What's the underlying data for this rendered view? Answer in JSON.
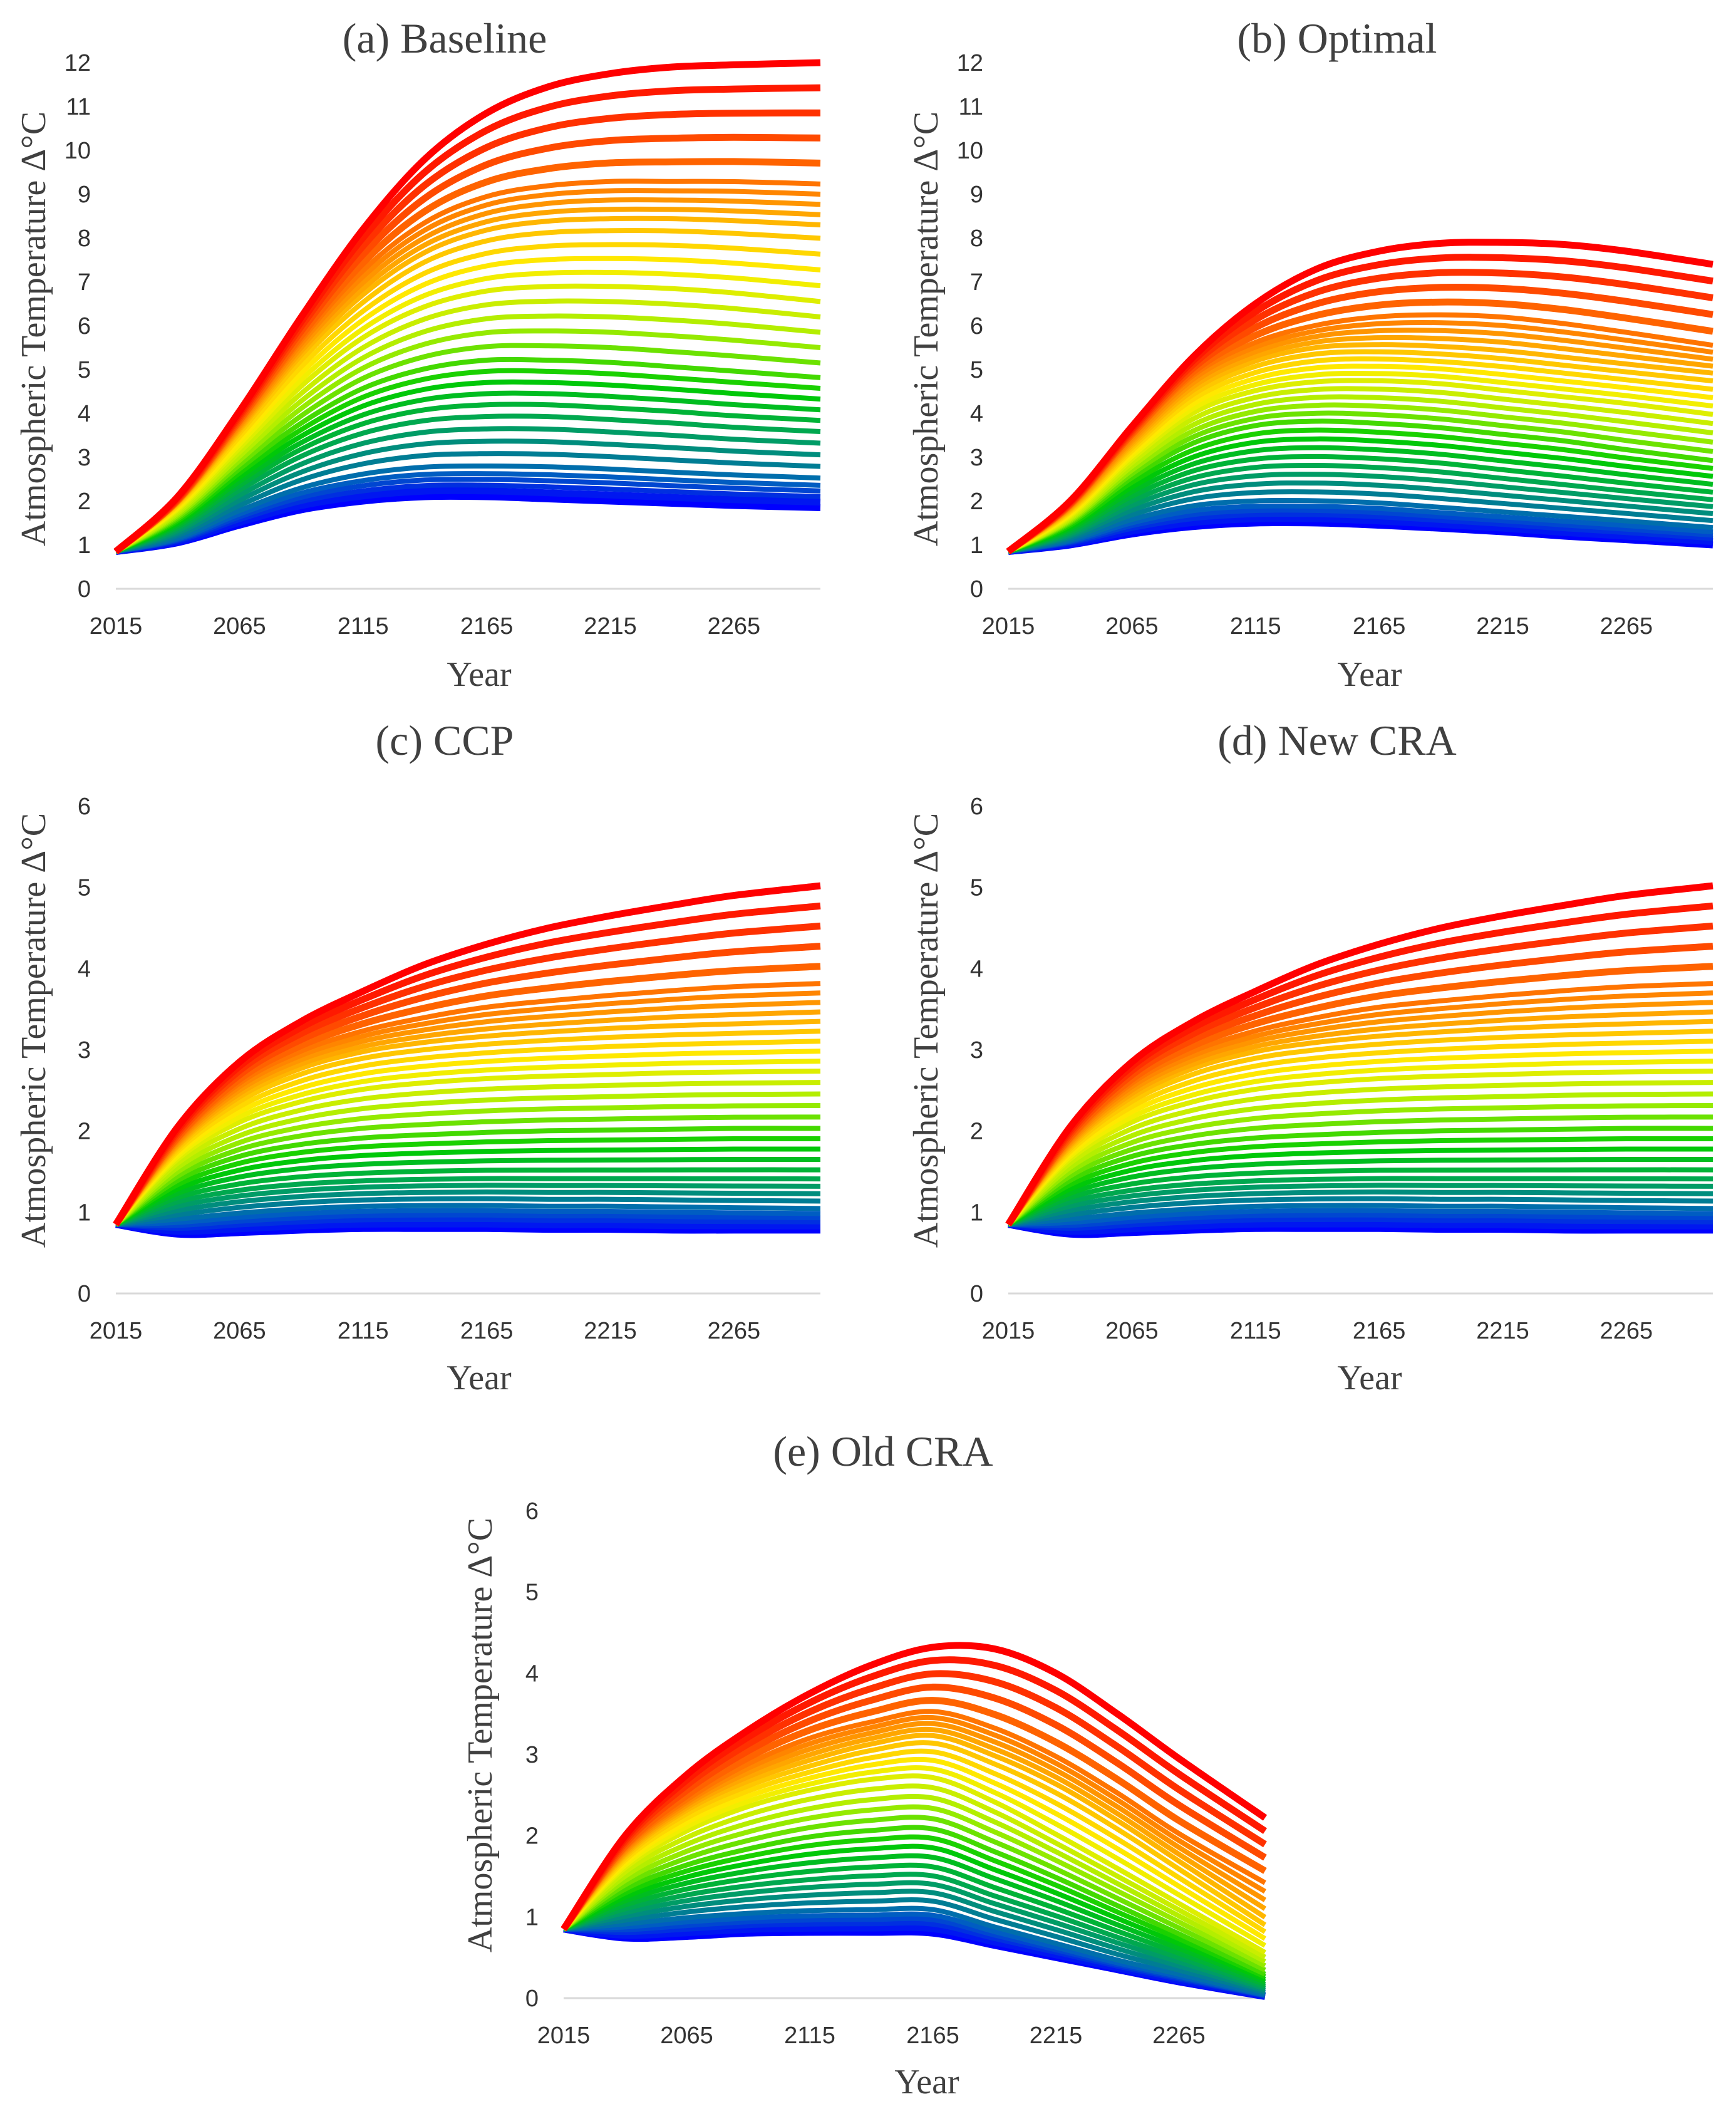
{
  "colors": {
    "palette": [
      "#0000ff",
      "#0060c0",
      "#00a060",
      "#00cc00",
      "#aaee00",
      "#ffee00",
      "#ffaa00",
      "#ff6600",
      "#ff0000"
    ],
    "axis": "#d9d9d9",
    "text": "#404040"
  },
  "series_note": "Curves ordered from lowest (blue) to highest (red); intermediate curves are interpolated between listed series.",
  "chart_data": [
    {
      "id": "a",
      "type": "line",
      "title": "(a) Baseline",
      "xlabel": "Year",
      "ylabel": "Atmospheric Temperature Δ°C",
      "x": [
        2015,
        2040,
        2065,
        2090,
        2115,
        2140,
        2165,
        2190,
        2215,
        2240,
        2265,
        2300
      ],
      "xticks": [
        "2015",
        "2065",
        "2115",
        "2165",
        "2215",
        "2265"
      ],
      "ylim": [
        0,
        12
      ],
      "yticks": [
        "0",
        "1",
        "2",
        "3",
        "4",
        "5",
        "6",
        "7",
        "8",
        "9",
        "10",
        "11",
        "12"
      ],
      "interpolated_curves": 26,
      "series": [
        {
          "name": "lowest",
          "values": [
            0.85,
            1.05,
            1.45,
            1.8,
            2.0,
            2.1,
            2.1,
            2.05,
            2.0,
            1.95,
            1.9,
            1.85
          ]
        },
        {
          "name": "second",
          "values": [
            0.85,
            1.15,
            1.75,
            2.25,
            2.55,
            2.7,
            2.72,
            2.7,
            2.65,
            2.58,
            2.52,
            2.45
          ]
        },
        {
          "name": "sixth",
          "values": [
            0.85,
            1.4,
            2.3,
            3.1,
            3.65,
            3.95,
            4.05,
            4.05,
            3.98,
            3.9,
            3.8,
            3.7
          ]
        },
        {
          "name": "median",
          "values": [
            0.85,
            1.6,
            2.75,
            3.8,
            4.6,
            5.05,
            5.25,
            5.25,
            5.2,
            5.1,
            5.0,
            4.85
          ]
        },
        {
          "name": "upper",
          "values": [
            0.85,
            1.8,
            3.2,
            4.6,
            5.7,
            6.4,
            6.75,
            6.85,
            6.85,
            6.8,
            6.7,
            6.5
          ]
        },
        {
          "name": "third-highest",
          "values": [
            0.85,
            1.95,
            3.6,
            5.3,
            6.65,
            7.6,
            8.1,
            8.3,
            8.35,
            8.35,
            8.3,
            8.2
          ]
        },
        {
          "name": "second-highest",
          "values": [
            0.85,
            2.0,
            3.8,
            5.7,
            7.3,
            8.4,
            9.0,
            9.25,
            9.35,
            9.35,
            9.35,
            9.3
          ]
        },
        {
          "name": "highest",
          "values": [
            0.85,
            2.1,
            4.05,
            6.2,
            8.2,
            9.8,
            10.85,
            11.45,
            11.75,
            11.9,
            11.95,
            12.0
          ]
        }
      ]
    },
    {
      "id": "b",
      "type": "line",
      "title": "(b) Optimal",
      "xlabel": "Year",
      "ylabel": "Atmospheric Temperature Δ°C",
      "x": [
        2015,
        2040,
        2065,
        2090,
        2115,
        2140,
        2165,
        2190,
        2215,
        2240,
        2265,
        2300
      ],
      "xticks": [
        "2015",
        "2065",
        "2115",
        "2165",
        "2215",
        "2265"
      ],
      "ylim": [
        0,
        12
      ],
      "yticks": [
        "0",
        "1",
        "2",
        "3",
        "4",
        "5",
        "6",
        "7",
        "8",
        "9",
        "10",
        "11",
        "12"
      ],
      "interpolated_curves": 26,
      "series": [
        {
          "name": "lowest",
          "values": [
            0.85,
            1.0,
            1.25,
            1.42,
            1.5,
            1.5,
            1.45,
            1.38,
            1.3,
            1.2,
            1.12,
            1.0
          ]
        },
        {
          "name": "second",
          "values": [
            0.85,
            1.1,
            1.55,
            1.85,
            1.95,
            1.95,
            1.9,
            1.8,
            1.7,
            1.6,
            1.5,
            1.35
          ]
        },
        {
          "name": "sixth",
          "values": [
            0.85,
            1.3,
            2.05,
            2.6,
            2.85,
            2.9,
            2.85,
            2.75,
            2.6,
            2.45,
            2.3,
            2.1
          ]
        },
        {
          "name": "median",
          "values": [
            0.85,
            1.5,
            2.55,
            3.35,
            3.75,
            3.85,
            3.8,
            3.7,
            3.55,
            3.4,
            3.2,
            2.95
          ]
        },
        {
          "name": "upper",
          "values": [
            0.85,
            1.65,
            2.95,
            4.0,
            4.5,
            4.7,
            4.72,
            4.65,
            4.5,
            4.35,
            4.2,
            3.95
          ]
        },
        {
          "name": "third-highest",
          "values": [
            0.85,
            1.8,
            3.25,
            4.5,
            5.15,
            5.45,
            5.5,
            5.45,
            5.35,
            5.2,
            5.05,
            4.85
          ]
        },
        {
          "name": "second-highest",
          "values": [
            0.85,
            1.9,
            3.5,
            4.9,
            5.65,
            6.05,
            6.25,
            6.3,
            6.25,
            6.1,
            5.9,
            5.6
          ]
        },
        {
          "name": "highest",
          "values": [
            0.85,
            2.0,
            3.7,
            5.3,
            6.5,
            7.3,
            7.7,
            7.88,
            7.9,
            7.85,
            7.7,
            7.4
          ]
        }
      ]
    },
    {
      "id": "c",
      "type": "line",
      "title": "(c) CCP",
      "xlabel": "Year",
      "ylabel": "Atmospheric Temperature Δ°C",
      "x": [
        2015,
        2040,
        2065,
        2090,
        2115,
        2140,
        2165,
        2190,
        2215,
        2240,
        2265,
        2300
      ],
      "xticks": [
        "2015",
        "2065",
        "2115",
        "2165",
        "2215",
        "2265"
      ],
      "ylim": [
        0,
        6
      ],
      "yticks": [
        "0",
        "1",
        "2",
        "3",
        "4",
        "5",
        "6"
      ],
      "interpolated_curves": 26,
      "series": [
        {
          "name": "lowest",
          "values": [
            0.85,
            0.73,
            0.75,
            0.78,
            0.8,
            0.8,
            0.8,
            0.79,
            0.79,
            0.78,
            0.78,
            0.78
          ]
        },
        {
          "name": "second",
          "values": [
            0.85,
            0.9,
            0.97,
            1.02,
            1.05,
            1.06,
            1.06,
            1.05,
            1.05,
            1.04,
            1.03,
            1.02
          ]
        },
        {
          "name": "sixth",
          "values": [
            0.85,
            1.15,
            1.3,
            1.38,
            1.42,
            1.44,
            1.45,
            1.45,
            1.45,
            1.45,
            1.45,
            1.45
          ]
        },
        {
          "name": "median",
          "values": [
            0.85,
            1.4,
            1.7,
            1.85,
            1.93,
            1.97,
            2.0,
            2.02,
            2.03,
            2.04,
            2.05,
            2.05
          ]
        },
        {
          "name": "upper",
          "values": [
            0.85,
            1.65,
            2.1,
            2.35,
            2.5,
            2.58,
            2.63,
            2.66,
            2.68,
            2.7,
            2.71,
            2.72
          ]
        },
        {
          "name": "third-highest",
          "values": [
            0.85,
            1.8,
            2.4,
            2.75,
            2.95,
            3.06,
            3.13,
            3.18,
            3.22,
            3.25,
            3.27,
            3.3
          ]
        },
        {
          "name": "second-highest",
          "values": [
            0.85,
            1.9,
            2.6,
            3.0,
            3.25,
            3.42,
            3.55,
            3.63,
            3.7,
            3.76,
            3.81,
            3.85
          ]
        },
        {
          "name": "highest",
          "values": [
            0.85,
            2.05,
            2.85,
            3.35,
            3.72,
            4.05,
            4.3,
            4.5,
            4.65,
            4.78,
            4.9,
            5.02
          ]
        }
      ]
    },
    {
      "id": "d",
      "type": "line",
      "title": "(d) New CRA",
      "xlabel": "Year",
      "ylabel": "Atmospheric Temperature Δ°C",
      "x": [
        2015,
        2040,
        2065,
        2090,
        2115,
        2140,
        2165,
        2190,
        2215,
        2240,
        2265,
        2300
      ],
      "xticks": [
        "2015",
        "2065",
        "2115",
        "2165",
        "2215",
        "2265"
      ],
      "ylim": [
        0,
        6
      ],
      "yticks": [
        "0",
        "1",
        "2",
        "3",
        "4",
        "5",
        "6"
      ],
      "interpolated_curves": 26,
      "series": [
        {
          "name": "lowest",
          "values": [
            0.85,
            0.73,
            0.75,
            0.78,
            0.8,
            0.8,
            0.8,
            0.79,
            0.79,
            0.78,
            0.78,
            0.78
          ]
        },
        {
          "name": "second",
          "values": [
            0.85,
            0.9,
            0.97,
            1.02,
            1.05,
            1.06,
            1.06,
            1.05,
            1.05,
            1.04,
            1.03,
            1.02
          ]
        },
        {
          "name": "sixth",
          "values": [
            0.85,
            1.15,
            1.3,
            1.38,
            1.42,
            1.44,
            1.45,
            1.45,
            1.45,
            1.45,
            1.45,
            1.45
          ]
        },
        {
          "name": "median",
          "values": [
            0.85,
            1.4,
            1.7,
            1.85,
            1.93,
            1.97,
            2.0,
            2.02,
            2.03,
            2.04,
            2.05,
            2.05
          ]
        },
        {
          "name": "upper",
          "values": [
            0.85,
            1.65,
            2.1,
            2.35,
            2.5,
            2.58,
            2.63,
            2.66,
            2.68,
            2.7,
            2.71,
            2.72
          ]
        },
        {
          "name": "third-highest",
          "values": [
            0.85,
            1.8,
            2.4,
            2.75,
            2.95,
            3.06,
            3.13,
            3.18,
            3.22,
            3.25,
            3.27,
            3.3
          ]
        },
        {
          "name": "second-highest",
          "values": [
            0.85,
            1.9,
            2.6,
            3.0,
            3.25,
            3.42,
            3.55,
            3.63,
            3.7,
            3.76,
            3.81,
            3.85
          ]
        },
        {
          "name": "highest",
          "values": [
            0.85,
            2.05,
            2.85,
            3.35,
            3.72,
            4.05,
            4.3,
            4.5,
            4.65,
            4.78,
            4.9,
            5.02
          ]
        }
      ]
    },
    {
      "id": "e",
      "type": "line",
      "title": "(e) Old CRA",
      "xlabel": "Year",
      "ylabel": "Atmospheric Temperature Δ°C",
      "x": [
        2015,
        2040,
        2065,
        2090,
        2115,
        2140,
        2165,
        2190,
        2215,
        2240,
        2265,
        2300
      ],
      "xticks": [
        "2015",
        "2065",
        "2115",
        "2165",
        "2215",
        "2265"
      ],
      "ylim": [
        0,
        6
      ],
      "yticks": [
        "0",
        "1",
        "2",
        "3",
        "4",
        "5",
        "6"
      ],
      "interpolated_curves": 26,
      "series": [
        {
          "name": "lowest",
          "values": [
            0.85,
            0.74,
            0.76,
            0.8,
            0.81,
            0.81,
            0.8,
            0.65,
            0.5,
            0.35,
            0.2,
            0.02
          ]
        },
        {
          "name": "second",
          "values": [
            0.85,
            0.9,
            0.97,
            1.02,
            1.05,
            1.06,
            1.06,
            0.85,
            0.65,
            0.45,
            0.28,
            0.04
          ]
        },
        {
          "name": "sixth",
          "values": [
            0.85,
            1.12,
            1.3,
            1.42,
            1.5,
            1.55,
            1.55,
            1.3,
            1.05,
            0.78,
            0.52,
            0.15
          ]
        },
        {
          "name": "median",
          "values": [
            0.85,
            1.35,
            1.65,
            1.85,
            2.0,
            2.08,
            2.1,
            1.82,
            1.5,
            1.15,
            0.8,
            0.3
          ]
        },
        {
          "name": "upper",
          "values": [
            0.85,
            1.6,
            2.05,
            2.35,
            2.55,
            2.68,
            2.7,
            2.4,
            2.0,
            1.58,
            1.15,
            0.55
          ]
        },
        {
          "name": "third-highest",
          "values": [
            0.85,
            1.75,
            2.3,
            2.65,
            2.9,
            3.1,
            3.2,
            2.95,
            2.6,
            2.15,
            1.65,
            0.95
          ]
        },
        {
          "name": "second-highest",
          "values": [
            0.85,
            1.85,
            2.45,
            2.9,
            3.22,
            3.42,
            3.55,
            3.35,
            3.0,
            2.55,
            2.05,
            1.45
          ]
        },
        {
          "name": "highest",
          "values": [
            0.85,
            2.0,
            2.75,
            3.3,
            3.75,
            4.1,
            4.32,
            4.3,
            4.0,
            3.5,
            2.95,
            2.22
          ]
        }
      ]
    }
  ]
}
